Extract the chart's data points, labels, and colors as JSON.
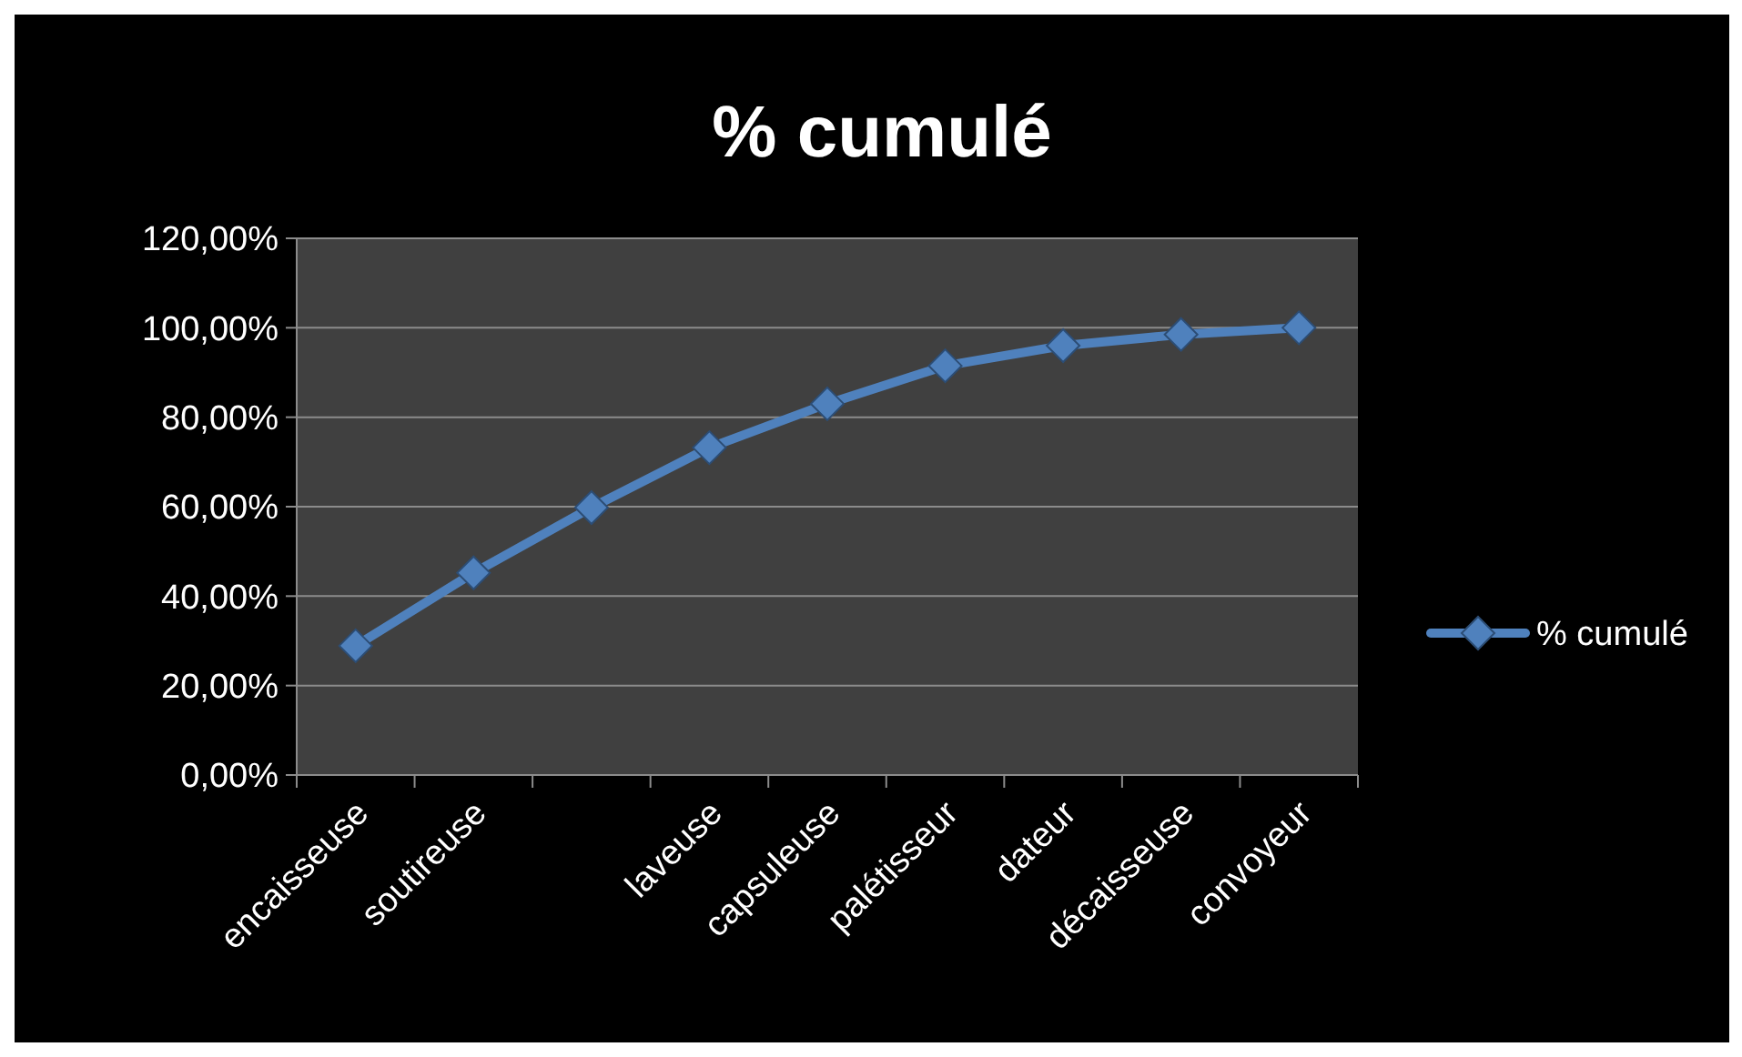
{
  "chart_data": {
    "type": "line",
    "title": "% cumulé",
    "categories": [
      "encaisseuse",
      "soutireuse",
      null,
      "laveuse",
      "capsuleuse",
      "palétisseur",
      "dateur",
      "décaisseuse",
      "convoyeur"
    ],
    "series": [
      {
        "name": "% cumulé",
        "color": "#4f81bd",
        "values": [
          28.9,
          45.2,
          59.8,
          73.2,
          83.0,
          91.5,
          96.0,
          98.5,
          100.0
        ]
      }
    ],
    "ylim": [
      0,
      120
    ],
    "yticks": [
      {
        "value": 0,
        "label": "0,00%"
      },
      {
        "value": 20,
        "label": "20,00%"
      },
      {
        "value": 40,
        "label": "40,00%"
      },
      {
        "value": 60,
        "label": "60,00%"
      },
      {
        "value": 80,
        "label": "80,00%"
      },
      {
        "value": 100,
        "label": "100,00%"
      },
      {
        "value": 120,
        "label": "120,00%"
      }
    ],
    "grid": "y",
    "legend": "right",
    "marker": "diamond",
    "line_style": "solid"
  }
}
